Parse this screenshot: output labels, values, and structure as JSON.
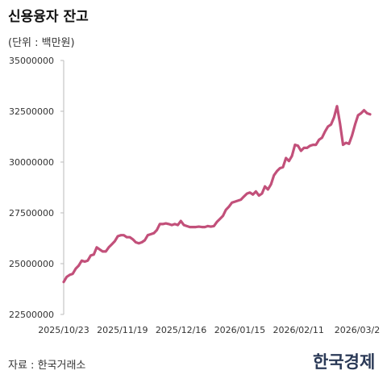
{
  "header": {
    "title": "신용융자 잔고",
    "unit": "(단위 : 백만원)"
  },
  "footer": {
    "source": "자료 : 한국거래소",
    "logo": "한국경제"
  },
  "colors": {
    "line": "#c2507a",
    "axis": "#bbbbbb"
  },
  "chart_data": {
    "type": "line",
    "title": "신용융자 잔고",
    "xlabel": "",
    "ylabel": "",
    "ylim": [
      22500000,
      35000000
    ],
    "y_ticks": [
      "35000000",
      "32500000",
      "30000000",
      "27500000",
      "25000000",
      "22500000"
    ],
    "x_ticks": [
      "2025/10/23",
      "2025/11/19",
      "2025/12/16",
      "2026/01/15",
      "2026/02/11",
      "2026/03/2"
    ],
    "grid": false,
    "series": [
      {
        "values": [
          24100000,
          24350000,
          24450000,
          24500000,
          24750000,
          24900000,
          25150000,
          25100000,
          25150000,
          25400000,
          25450000,
          25800000,
          25700000,
          25600000,
          25600000,
          25800000,
          25950000,
          26100000,
          26350000,
          26400000,
          26400000,
          26300000,
          26300000,
          26200000,
          26050000,
          26000000,
          26050000,
          26150000,
          26400000,
          26450000,
          26500000,
          26650000,
          26950000,
          26950000,
          26980000,
          26950000,
          26900000,
          26950000,
          26900000,
          27100000,
          26900000,
          26850000,
          26800000,
          26800000,
          26800000,
          26820000,
          26800000,
          26800000,
          26850000,
          26820000,
          26850000,
          27050000,
          27200000,
          27350000,
          27650000,
          27800000,
          28000000,
          28050000,
          28100000,
          28150000,
          28300000,
          28450000,
          28500000,
          28400000,
          28550000,
          28350000,
          28450000,
          28800000,
          28650000,
          28900000,
          29350000,
          29550000,
          29700000,
          29750000,
          30200000,
          30050000,
          30300000,
          30850000,
          30800000,
          30550000,
          30700000,
          30700000,
          30800000,
          30850000,
          30850000,
          31100000,
          31200000,
          31500000,
          31750000,
          31850000,
          32200000,
          32750000,
          31900000,
          30850000,
          30950000,
          30900000,
          31300000,
          31850000,
          32300000,
          32400000,
          32550000,
          32400000,
          32350000
        ]
      }
    ]
  }
}
